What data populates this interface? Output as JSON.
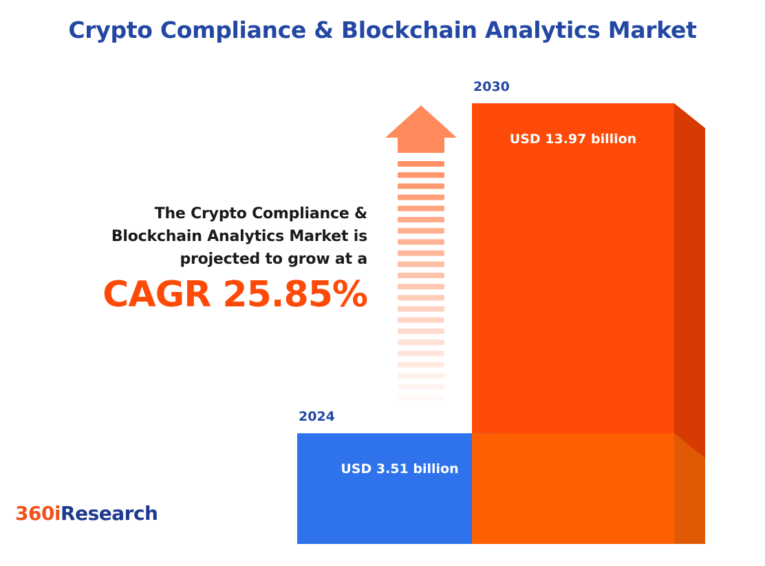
{
  "title": "Crypto Compliance & Blockchain Analytics Market",
  "description": {
    "line1": "The Crypto Compliance &",
    "line2": "Blockchain Analytics Market is",
    "line3": "projected to grow at a"
  },
  "cagr_label": "CAGR 25.85%",
  "logo": {
    "part1": "360i",
    "part2": "Research"
  },
  "colors": {
    "title": "#2348a3",
    "accent_orange": "#fe4a08",
    "bar_2024_front": "#2e72ec",
    "bar_2024_side": "#0c339a",
    "bar_2030_front": "#fe4a08",
    "bar_2030_side": "#d83a04",
    "arrow": "#ff8a5c",
    "year_label": "#2348a3"
  },
  "chart_data": {
    "type": "bar",
    "categories": [
      "2024",
      "2030"
    ],
    "values": [
      3.51,
      13.97
    ],
    "value_labels": [
      "USD 3.51 billion",
      "USD 13.97 billion"
    ],
    "unit": "USD billion"
  }
}
